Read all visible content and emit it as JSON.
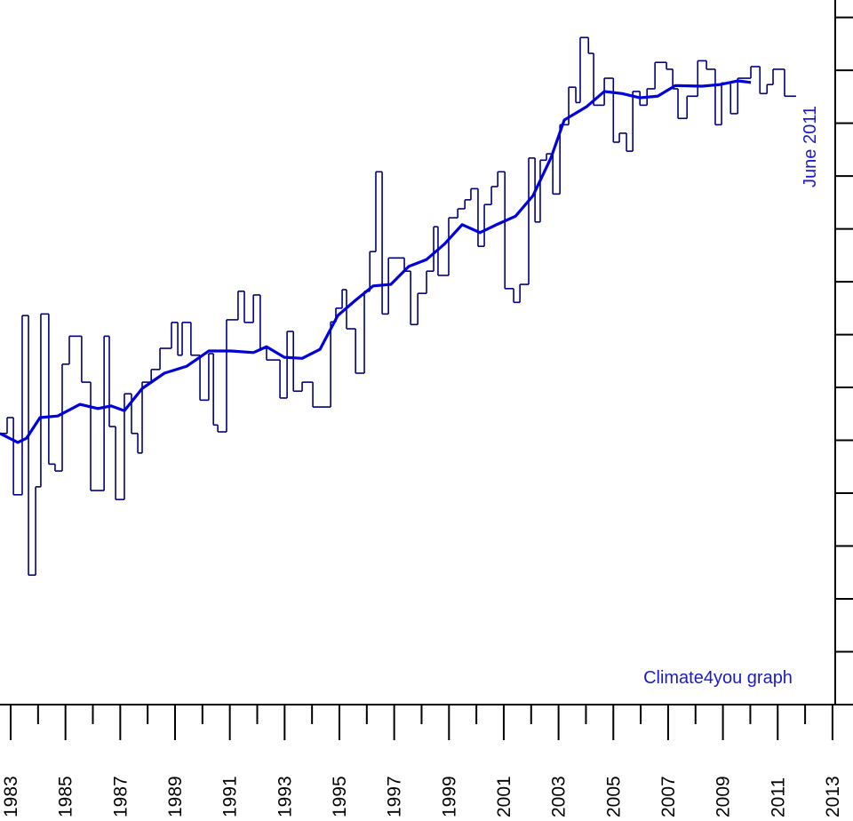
{
  "chart_data": {
    "type": "line",
    "annotations": [
      "June 2011",
      "Climate4you graph"
    ],
    "xlim": [
      1982.61,
      2013.1
    ],
    "ylim": [
      0,
      13.33
    ],
    "xticks": [
      1983,
      1985,
      1987,
      1989,
      1991,
      1993,
      1995,
      1997,
      1999,
      2001,
      2003,
      2005,
      2007,
      2009,
      2011,
      2013
    ],
    "xminor_ticks": [
      1984,
      1986,
      1988,
      1990,
      1992,
      1994,
      1996,
      1998,
      2000,
      2002,
      2004,
      2006,
      2008,
      2010,
      2012
    ],
    "yticks": [
      0,
      1,
      2,
      3,
      4,
      5,
      6,
      7,
      8,
      9,
      10,
      11,
      12,
      13
    ],
    "series": [
      {
        "color": "#000080",
        "step": true,
        "x": [
          1982.61,
          1982.87,
          1983.1,
          1983.42,
          1983.65,
          1983.91,
          1984.1,
          1984.39,
          1984.62,
          1984.88,
          1985.14,
          1985.59,
          1985.92,
          1986.41,
          1986.6,
          1986.83,
          1987.15,
          1987.41,
          1987.64,
          1987.8,
          1988.13,
          1988.45,
          1988.87,
          1989.1,
          1989.26,
          1989.58,
          1989.91,
          1990.23,
          1990.4,
          1990.56,
          1990.88,
          1991.3,
          1991.53,
          1991.86,
          1992.11,
          1992.34,
          1992.83,
          1993.09,
          1993.32,
          1993.64,
          1994.03,
          1994.68,
          1994.87,
          1995.1,
          1995.26,
          1995.59,
          1995.91,
          1996.11,
          1996.33,
          1996.56,
          1996.79,
          1997.37,
          1997.6,
          1997.86,
          1998.18,
          1998.44,
          1998.6,
          1998.99,
          1999.32,
          1999.58,
          1999.8,
          2000.06,
          2000.29,
          2000.55,
          2000.78,
          2001.04,
          2001.36,
          2001.59,
          2001.91,
          2002.14,
          2002.33,
          2002.56,
          2002.79,
          2003.05,
          2003.37,
          2003.63,
          2003.79,
          2004.09,
          2004.28,
          2004.67,
          2005.0,
          2005.22,
          2005.48,
          2005.71,
          2005.97,
          2006.23,
          2006.52,
          2006.94,
          2007.17,
          2007.36,
          2007.69,
          2008.08,
          2008.4,
          2008.72,
          2008.95,
          2009.28,
          2009.54,
          2010.02,
          2010.35,
          2010.61,
          2010.83,
          2011.25
        ],
        "values": [
          5.13,
          5.43,
          3.97,
          7.36,
          2.45,
          4.12,
          7.39,
          4.55,
          4.42,
          6.44,
          6.97,
          6.1,
          4.05,
          6.97,
          5.26,
          3.88,
          5.88,
          5.13,
          4.76,
          6.1,
          6.34,
          6.74,
          7.23,
          6.61,
          7.23,
          6.61,
          5.76,
          6.64,
          5.29,
          5.16,
          7.28,
          7.82,
          7.23,
          7.75,
          6.74,
          6.52,
          5.8,
          7.06,
          5.93,
          6.1,
          5.63,
          7.24,
          7.5,
          7.85,
          7.11,
          6.27,
          7.82,
          8.57,
          10.08,
          7.39,
          8.45,
          8.2,
          7.19,
          7.78,
          8.2,
          9.04,
          8.12,
          9.21,
          9.38,
          9.55,
          9.76,
          8.67,
          9.46,
          9.8,
          10.08,
          7.87,
          7.61,
          7.95,
          10.34,
          9.13,
          10.3,
          10.42,
          9.66,
          10.97,
          11.68,
          11.39,
          12.62,
          12.32,
          11.34,
          11.85,
          10.64,
          10.81,
          10.47,
          11.6,
          11.34,
          11.65,
          12.15,
          12.02,
          11.65,
          11.09,
          11.51,
          12.18,
          12.02,
          10.97,
          11.76,
          11.18,
          11.85,
          12.07,
          11.56,
          11.73,
          12.02,
          11.51
        ]
      },
      {
        "color": "#0000dd",
        "step": false,
        "x": [
          1982.61,
          1983.26,
          1983.58,
          1984.07,
          1984.72,
          1985.53,
          1986.18,
          1986.67,
          1987.15,
          1987.8,
          1988.61,
          1989.42,
          1990.23,
          1991.04,
          1991.86,
          1992.34,
          1992.99,
          1993.64,
          1994.29,
          1994.94,
          1995.59,
          1996.23,
          1996.88,
          1997.53,
          1998.18,
          1998.83,
          1999.48,
          2000.13,
          2000.78,
          2001.43,
          2002.07,
          2002.72,
          2003.21,
          2004.02,
          2004.67,
          2005.32,
          2005.97,
          2006.62,
          2007.26,
          2008.24,
          2008.89,
          2009.54,
          2010.02
        ],
        "values": [
          5.13,
          4.96,
          5.04,
          5.43,
          5.46,
          5.68,
          5.6,
          5.65,
          5.56,
          5.98,
          6.27,
          6.4,
          6.69,
          6.69,
          6.66,
          6.77,
          6.57,
          6.55,
          6.72,
          7.36,
          7.65,
          7.92,
          7.95,
          8.29,
          8.42,
          8.71,
          9.08,
          8.93,
          9.09,
          9.24,
          9.63,
          10.34,
          11.06,
          11.31,
          11.6,
          11.56,
          11.48,
          11.51,
          11.71,
          11.7,
          11.73,
          11.8,
          11.77
        ]
      }
    ]
  }
}
